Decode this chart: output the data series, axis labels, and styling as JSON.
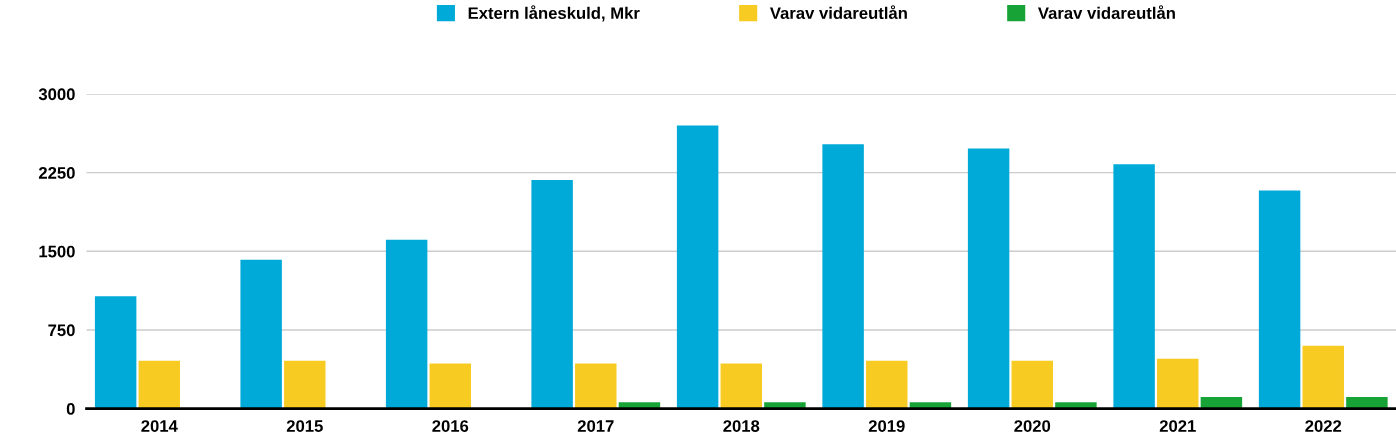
{
  "chart_data": {
    "type": "bar",
    "categories": [
      "2014",
      "2015",
      "2016",
      "2017",
      "2018",
      "2019",
      "2020",
      "2021",
      "2022"
    ],
    "series": [
      {
        "name": "Extern låneskuld, Mkr",
        "color": "#00aad8",
        "values": [
          1070,
          1420,
          1610,
          2180,
          2700,
          2520,
          2480,
          2330,
          2080
        ]
      },
      {
        "name": "Varav vidareutlån",
        "color": "#f7cb22",
        "values": [
          455,
          455,
          430,
          430,
          430,
          455,
          455,
          475,
          600
        ]
      },
      {
        "name": "Varav vidareutlån",
        "color": "#18a337",
        "values": [
          0,
          0,
          0,
          60,
          60,
          60,
          60,
          110,
          110
        ]
      }
    ],
    "ylim": [
      0,
      3000
    ],
    "yticks": [
      0,
      750,
      1500,
      2250,
      3000
    ],
    "grid": "y",
    "legend": "top"
  }
}
